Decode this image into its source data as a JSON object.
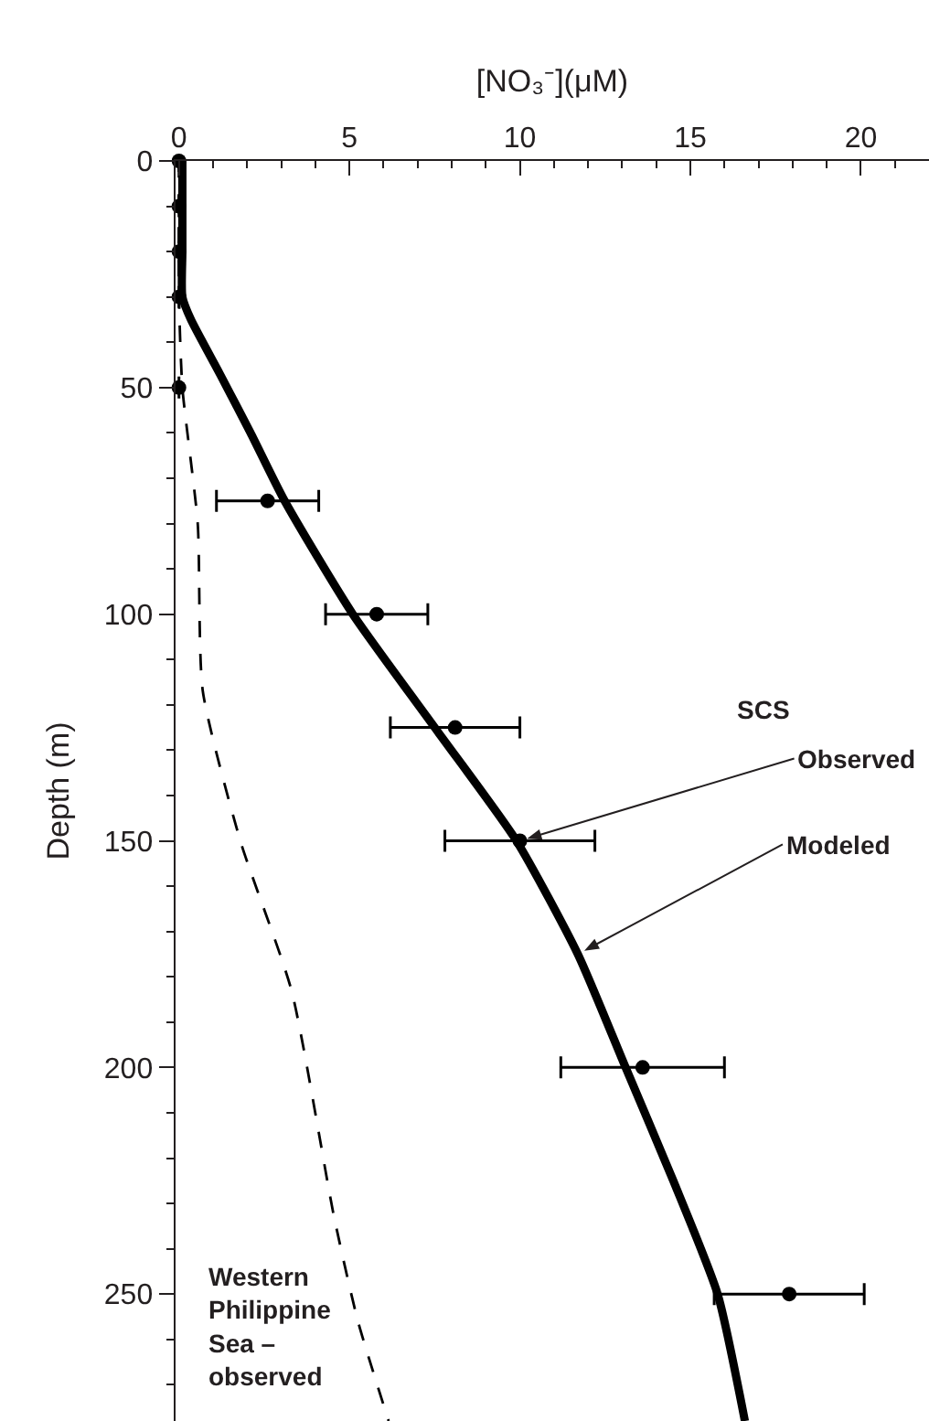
{
  "chart_data": {
    "type": "line",
    "xlabel": "[NO₃⁻](μM)",
    "ylabel": "Depth (m)",
    "series": [
      {
        "type": "scatter",
        "color": "#000000",
        "marker": "circle",
        "x": [
          0,
          0,
          0,
          0,
          0,
          2.6,
          5.8,
          8.1,
          10,
          13.6,
          17.9
        ],
        "values": [
          0,
          10,
          20,
          30,
          50,
          75,
          100,
          125,
          150,
          200,
          250
        ],
        "xerrors": [
          null,
          null,
          null,
          null,
          null,
          1.5,
          1.5,
          1.9,
          2.2,
          2.4,
          2.2
        ]
      },
      {
        "color": "#000000",
        "line_style": "solid",
        "x": [
          0.1,
          0.1,
          0.1,
          0.1,
          0.35,
          1.2,
          2.1,
          3.1,
          5.1,
          7.6,
          9.9,
          11.7,
          13.1,
          14.5,
          15.8,
          16.6
        ],
        "values": [
          0,
          10,
          20,
          30,
          35,
          47,
          60,
          75,
          100,
          126,
          150,
          175,
          200,
          225,
          250,
          278
        ]
      },
      {
        "color": "#000000",
        "line_style": "dashed",
        "x": [
          0,
          0,
          0.1,
          0.55,
          0.7,
          1.8,
          3.3,
          4.55,
          5.25,
          6.15
        ],
        "values": [
          0,
          30,
          50,
          80,
          117,
          150,
          183,
          233,
          256,
          278
        ]
      }
    ],
    "annotations": [
      "SCS",
      {
        "text": "Observed",
        "x": 10,
        "y": 150
      },
      {
        "text": "Modeled",
        "x": 11.7,
        "y": 175
      },
      "Western\nPhilippine\nSea –\nobserved"
    ],
    "xlim": [
      -0.1,
      22
    ],
    "xticks": [
      0,
      5,
      10,
      15,
      20
    ],
    "ylim": [
      278,
      0
    ],
    "yticks": [
      0,
      50,
      100,
      150,
      200,
      250
    ]
  }
}
